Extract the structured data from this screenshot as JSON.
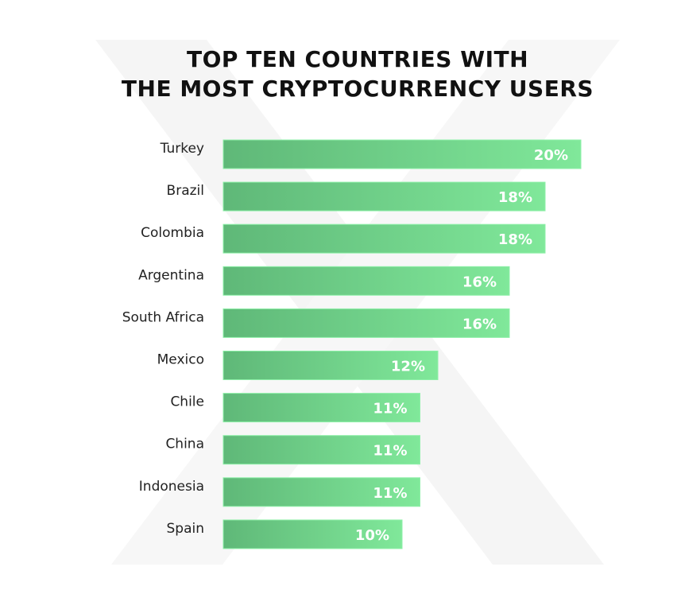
{
  "chart_data": {
    "type": "bar",
    "orientation": "horizontal",
    "title": [
      "TOP TEN COUNTRIES WITH",
      "THE MOST CRYPTOCURRENCY USERS"
    ],
    "categories": [
      "Turkey",
      "Brazil",
      "Colombia",
      "Argentina",
      "South Africa",
      "Mexico",
      "Chile",
      "China",
      "Indonesia",
      "Spain"
    ],
    "values": [
      20,
      18,
      18,
      16,
      16,
      12,
      11,
      11,
      11,
      10
    ],
    "value_labels": [
      "20%",
      "18%",
      "18%",
      "16%",
      "16%",
      "12%",
      "11%",
      "11%",
      "11%",
      "10%"
    ],
    "xlim": [
      0,
      20
    ],
    "grid": false,
    "colors": {
      "bar_start": "#5fb878",
      "bar_end": "#80e89a",
      "value_text": "#ffffff",
      "watermark": "#f3f3f3"
    }
  }
}
